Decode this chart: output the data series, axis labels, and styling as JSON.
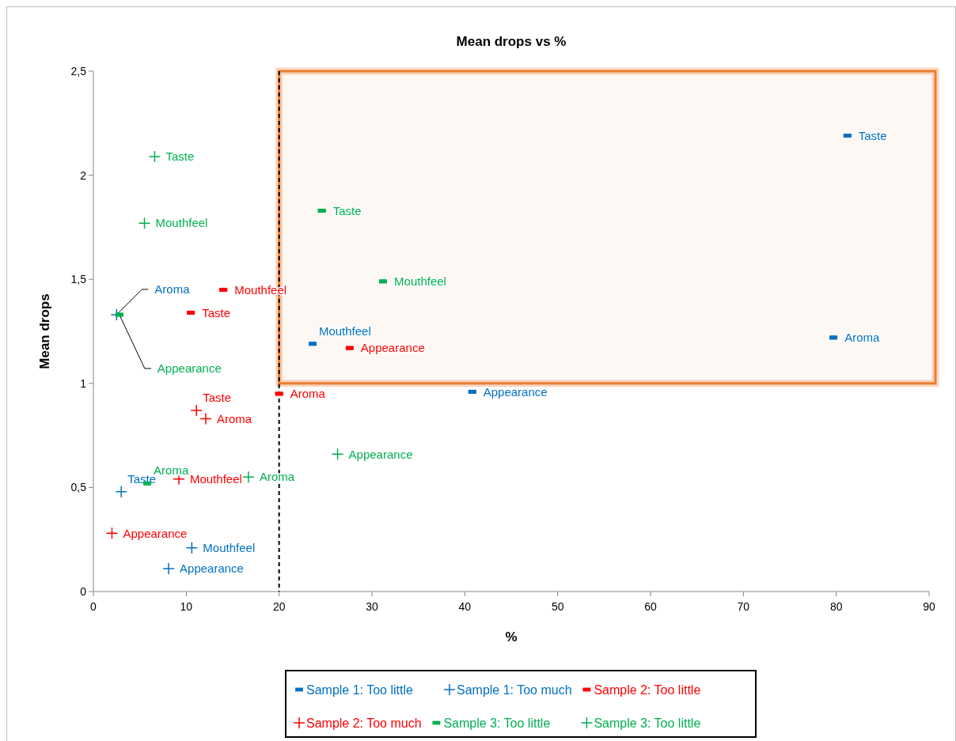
{
  "chart_data": {
    "type": "scatter",
    "title": "Mean drops vs %",
    "xlabel": "%",
    "ylabel": "Mean drops",
    "xlim": [
      0,
      90
    ],
    "xticks": [
      0,
      10,
      20,
      30,
      40,
      50,
      60,
      70,
      80,
      90
    ],
    "ylim": [
      0,
      2.5
    ],
    "yticks": [
      0,
      {
        "value": 0.5,
        "label": "0,5"
      },
      1,
      {
        "value": 1.5,
        "label": "1,5"
      },
      2,
      {
        "value": 2.5,
        "label": "2,5"
      }
    ],
    "grid": false,
    "legend": "bottom",
    "ref_lines": [
      {
        "axis": "x",
        "value": 20,
        "color": "#000000",
        "line_style": "dashed"
      }
    ],
    "bands": [
      {
        "axis": "y",
        "from": 1,
        "to": 2.5,
        "color": "#ed7d31"
      }
    ],
    "series": [
      {
        "name": "Sample 1: Too little",
        "color": "#0070c0",
        "marker": "square",
        "x": [
          81.2,
          79.7,
          23.6,
          40.8
        ],
        "values": [
          2.19,
          1.22,
          1.19,
          0.96
        ]
      },
      {
        "name": "Sample 1: Too much",
        "color": "#0070c0",
        "marker": "cross",
        "x": [
          2.5,
          3.0,
          10.6,
          8.1
        ],
        "values": [
          1.33,
          0.48,
          0.21,
          0.11
        ]
      },
      {
        "name": "Sample 2: Too little",
        "color": "#ff0000",
        "marker": "square",
        "x": [
          14.0,
          10.5,
          27.6,
          20.0
        ],
        "values": [
          1.45,
          1.34,
          1.17,
          0.95
        ]
      },
      {
        "name": "Sample 2: Too much",
        "color": "#ff0000",
        "marker": "cross",
        "x": [
          11.1,
          12.1,
          9.2,
          2.0
        ],
        "values": [
          0.87,
          0.83,
          0.54,
          0.28
        ]
      },
      {
        "name": "Sample 3: Too little",
        "color": "#00b050",
        "marker": "square",
        "x": [
          24.6,
          31.2,
          2.8,
          5.8
        ],
        "values": [
          1.83,
          1.49,
          1.33,
          0.52
        ]
      },
      {
        "name": "Sample 3: Too little",
        "color": "#00b050",
        "marker": "cross",
        "x": [
          6.6,
          5.5,
          26.3,
          16.7
        ],
        "values": [
          2.09,
          1.77,
          0.66,
          0.55
        ]
      }
    ],
    "annotations": [
      {
        "text": "Taste",
        "x": 81.2,
        "y": 2.19
      },
      {
        "text": "Aroma",
        "x": 79.7,
        "y": 1.22
      },
      {
        "text": "Mouthfeel",
        "x": 23.6,
        "y": 1.19
      },
      {
        "text": "Appearance",
        "x": 40.8,
        "y": 0.96
      },
      {
        "text": "Aroma",
        "x": 2.5,
        "y": 1.33
      },
      {
        "text": "Taste",
        "x": 3.0,
        "y": 0.48
      },
      {
        "text": "Mouthfeel",
        "x": 10.6,
        "y": 0.21
      },
      {
        "text": "Appearance",
        "x": 8.1,
        "y": 0.11
      },
      {
        "text": "Mouthfeel",
        "x": 14.0,
        "y": 1.45
      },
      {
        "text": "Taste",
        "x": 10.5,
        "y": 1.34
      },
      {
        "text": "Appearance",
        "x": 27.6,
        "y": 1.17
      },
      {
        "text": "Aroma",
        "x": 20.0,
        "y": 0.95
      },
      {
        "text": "Taste",
        "x": 11.1,
        "y": 0.87
      },
      {
        "text": "Aroma",
        "x": 12.1,
        "y": 0.83
      },
      {
        "text": "Mouthfeel",
        "x": 9.2,
        "y": 0.54
      },
      {
        "text": "Appearance",
        "x": 2.0,
        "y": 0.28
      },
      {
        "text": "Taste",
        "x": 24.6,
        "y": 1.83
      },
      {
        "text": "Mouthfeel",
        "x": 31.2,
        "y": 1.49
      },
      {
        "text": "Appearance",
        "x": 2.8,
        "y": 1.33
      },
      {
        "text": "Aroma",
        "x": 5.8,
        "y": 0.52
      },
      {
        "text": "Taste",
        "x": 6.6,
        "y": 2.09
      },
      {
        "text": "Mouthfeel",
        "x": 5.5,
        "y": 1.77
      },
      {
        "text": "Appearance",
        "x": 26.3,
        "y": 0.66
      },
      {
        "text": "Aroma",
        "x": 16.7,
        "y": 0.55
      }
    ]
  }
}
